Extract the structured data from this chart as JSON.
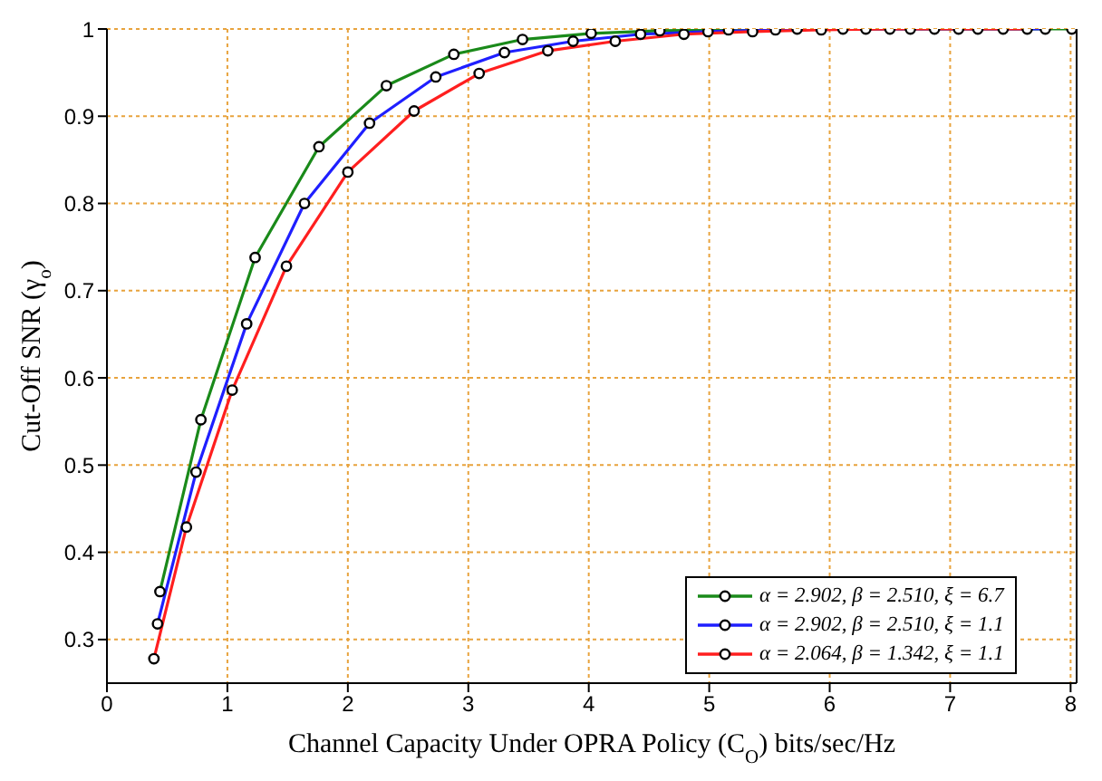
{
  "chart_data": {
    "type": "line",
    "xlabel": "Channel Capacity Under OPRA Policy (C$_{O}$) bits/sec/Hz",
    "ylabel": "Cut-Off SNR (γ$_{o}$)",
    "xlim": [
      0,
      8.05
    ],
    "ylim": [
      0.25,
      1
    ],
    "xticks": [
      0,
      1,
      2,
      3,
      4,
      5,
      6,
      7,
      8
    ],
    "yticks": [
      0.3,
      0.4,
      0.5,
      0.6,
      0.7,
      0.8,
      0.9,
      1
    ],
    "grid": true,
    "legend": "bottom right",
    "marker": "circle",
    "line_style": "solid",
    "series": [
      {
        "name": "α = 2.902, β = 2.510, ξ = 6.7",
        "color": "#1a8a1a",
        "x": [
          0.44,
          0.78,
          1.23,
          1.76,
          2.32,
          2.88,
          3.45,
          4.02,
          4.59,
          5.16,
          5.73,
          6.3,
          6.87,
          7.44,
          8.01
        ],
        "values": [
          0.355,
          0.552,
          0.738,
          0.865,
          0.935,
          0.971,
          0.988,
          0.995,
          0.998,
          0.999,
          1,
          1,
          1,
          1,
          1
        ]
      },
      {
        "name": "α = 2.902, β = 2.510, ξ = 1.1",
        "color": "#1f1fff",
        "x": [
          0.42,
          0.74,
          1.16,
          1.64,
          2.18,
          2.73,
          3.3,
          3.87,
          4.43,
          4.99,
          5.55,
          6.11,
          6.67,
          7.23,
          7.79
        ],
        "values": [
          0.318,
          0.492,
          0.662,
          0.8,
          0.892,
          0.945,
          0.973,
          0.986,
          0.994,
          0.997,
          0.999,
          1,
          1,
          1,
          1
        ]
      },
      {
        "name": "α = 2.064, β = 1.342, ξ = 1.1",
        "color": "#ff1f1f",
        "x": [
          0.39,
          0.66,
          1.04,
          1.49,
          2.0,
          2.55,
          3.09,
          3.66,
          4.22,
          4.79,
          5.36,
          5.93,
          6.5,
          7.07,
          7.64
        ],
        "values": [
          0.278,
          0.429,
          0.586,
          0.728,
          0.836,
          0.906,
          0.949,
          0.975,
          0.986,
          0.994,
          0.997,
          0.999,
          1,
          1,
          1
        ]
      }
    ]
  }
}
